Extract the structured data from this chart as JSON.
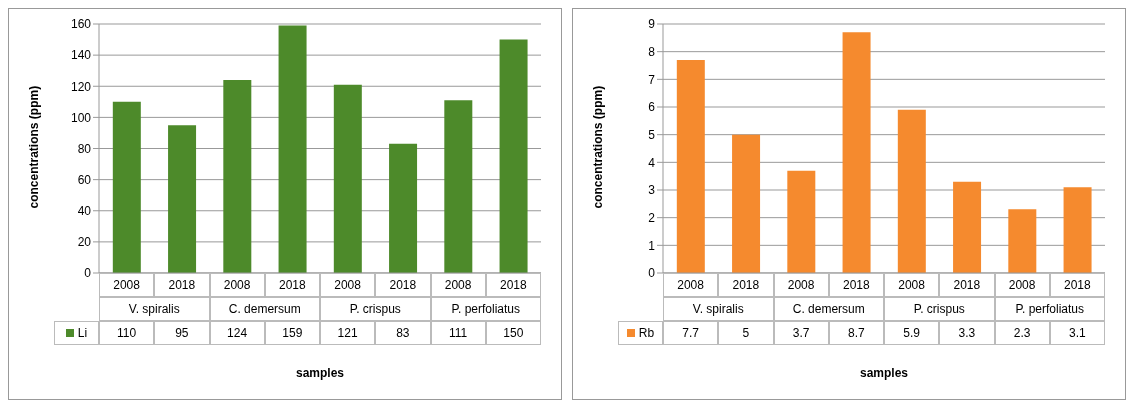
{
  "chart_data": [
    {
      "type": "bar",
      "xlabel": "samples",
      "ylabel": "concentrations (ppm)",
      "categories": [
        "2008",
        "2018",
        "2008",
        "2018",
        "2008",
        "2018",
        "2008",
        "2018"
      ],
      "annotations": [
        "V. spiralis",
        "C. demersum",
        "P. crispus",
        "P. perfoliatus"
      ],
      "series": [
        {
          "name": "Li",
          "color": "#4d8a2a",
          "values": [
            110,
            95,
            124,
            159,
            121,
            83,
            111,
            150
          ]
        }
      ],
      "ylim": [
        0,
        160
      ],
      "yticks": [
        0,
        20,
        40,
        60,
        80,
        100,
        120,
        140,
        160
      ],
      "grid": "y",
      "legend": "bottom",
      "data_labels": true
    },
    {
      "type": "bar",
      "xlabel": "samples",
      "ylabel": "concentrations (ppm)",
      "categories": [
        "2008",
        "2018",
        "2008",
        "2018",
        "2008",
        "2018",
        "2008",
        "2018"
      ],
      "annotations": [
        "V. spiralis",
        "C. demersum",
        "P. crispus",
        "P. perfoliatus"
      ],
      "series": [
        {
          "name": "Rb",
          "color": "#f58a2e",
          "values": [
            7.7,
            5,
            3.7,
            8.7,
            5.9,
            3.3,
            2.3,
            3.1
          ]
        }
      ],
      "ylim": [
        0,
        9
      ],
      "yticks": [
        0,
        1,
        2,
        3,
        4,
        5,
        6,
        7,
        8,
        9
      ],
      "grid": "y",
      "legend": "bottom",
      "data_labels": true
    }
  ]
}
